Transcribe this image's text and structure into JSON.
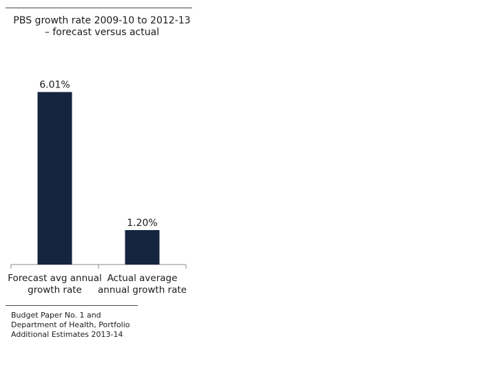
{
  "chart_data": {
    "type": "bar",
    "title": "PBS growth rate 2009-10 to 2012-13 – forecast versus actual",
    "categories": [
      "Forecast avg annual growth rate",
      "Actual average annual growth rate"
    ],
    "category_lines": [
      [
        "Forecast avg annual",
        "growth rate"
      ],
      [
        "Actual average",
        "annual growth rate"
      ]
    ],
    "values": [
      6.01,
      1.2
    ],
    "data_labels": [
      "6.01%",
      "1.20%"
    ],
    "ylim": [
      0,
      6.6
    ],
    "grid": false,
    "legend": "none",
    "bar_color": "#15253f"
  },
  "source_lines": [
    "Budget Paper No. 1 and",
    "Department of Health, Portfolio",
    "Additional Estimates 2013-14"
  ]
}
